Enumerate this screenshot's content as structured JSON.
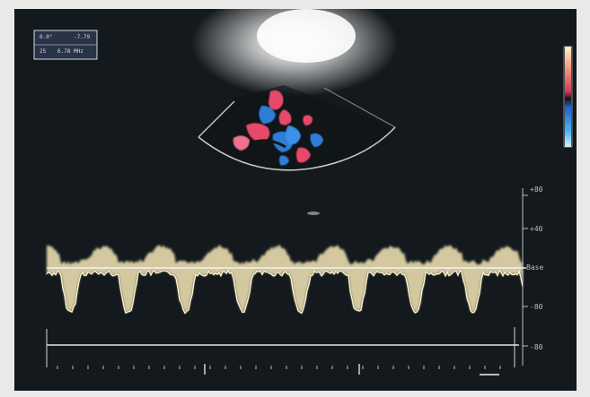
{
  "info_panel": {
    "row1_left": "0.0°",
    "row1_right": "-7.79",
    "row2_left": "25",
    "row2_right": "6.78 MHz"
  },
  "doppler_scale": {
    "labels": [
      "+80",
      "+40",
      "Base",
      "-80",
      "-80"
    ]
  },
  "colors": {
    "background": "#101418",
    "waveform": "#e8dcae",
    "doppler_red": "#e84a6a",
    "doppler_blue": "#2f7ed8"
  }
}
